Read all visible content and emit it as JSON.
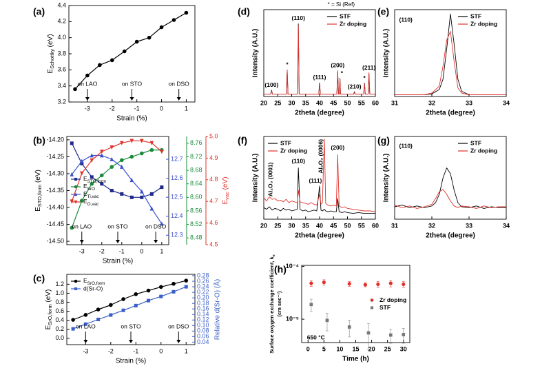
{
  "chart_data": [
    {
      "type": "line",
      "label": "(a)",
      "xlabel": "Strain (%)",
      "ylabel": [
        "E",
        "Schottky",
        " (eV)"
      ],
      "xlim": [
        -3.75,
        1.35
      ],
      "xticks": [
        -3,
        -2,
        -1,
        0,
        1
      ],
      "ylim": [
        3.2,
        4.4
      ],
      "yticks": [
        3.2,
        3.4,
        3.6,
        3.8,
        {
          "value": 4,
          "label": "4.0"
        },
        4.2,
        4.4
      ],
      "x": [
        -3.5,
        -3,
        -2.5,
        -2,
        -1.5,
        -1,
        -0.5,
        0,
        0.5,
        1
      ],
      "series": [
        {
          "color": "#000000",
          "marker": "o",
          "values": [
            3.36,
            3.53,
            3.66,
            3.72,
            3.83,
            3.95,
            4.0,
            4.13,
            4.22,
            4.31
          ]
        }
      ],
      "annotations": [
        {
          "text": "on LAO",
          "x": -3,
          "arrow": true
        },
        {
          "text": "on STO",
          "x": -1.2,
          "arrow": true
        },
        {
          "text": "on DSO",
          "x": 0.7,
          "arrow": true
        }
      ]
    },
    {
      "type": "line",
      "label": "(b)",
      "xlabel": "Strain (%)",
      "ylabel": [
        "E",
        "STO,form",
        " (eV)"
      ],
      "y4label": [
        "E",
        "vac",
        " (eV)"
      ],
      "xlim": [
        -3.75,
        1.35
      ],
      "xticks": [
        -3,
        -2,
        -1,
        0,
        1
      ],
      "ylim": [
        -14.51,
        -14.19
      ],
      "yticks": [
        {
          "value": -14.5,
          "label": "-14.50"
        },
        {
          "value": -14.45,
          "label": "-14.45"
        },
        {
          "value": -14.4,
          "label": "-14.40"
        },
        {
          "value": -14.35,
          "label": "-14.35"
        },
        {
          "value": -14.3,
          "label": "-14.30"
        },
        {
          "value": -14.25,
          "label": "-14.25"
        },
        {
          "value": -14.2,
          "label": "-14.20"
        }
      ],
      "y2lim": [
        12.25,
        12.82
      ],
      "y2ticks": [
        12.3,
        12.4,
        12.5,
        12.6,
        12.7
      ],
      "y3lim": [
        8.46,
        8.78
      ],
      "y3ticks": [
        8.48,
        8.52,
        8.56,
        {
          "value": 8.6,
          "label": "8.60"
        },
        8.64,
        8.68,
        8.72,
        8.76
      ],
      "y4lim": [
        4.5,
        5.0
      ],
      "y4ticks": [
        4.5,
        4.6,
        4.7,
        4.8,
        4.9,
        {
          "value": 5,
          "label": "5.0"
        }
      ],
      "x": [
        -3.5,
        -3,
        -2.5,
        -2,
        -1.5,
        -1,
        -0.5,
        0,
        0.5,
        1
      ],
      "series": [
        {
          "name": [
            "E",
            "STO,form"
          ],
          "color": "#1f2a8a",
          "marker": "s",
          "values": [
            -14.21,
            -14.27,
            -14.31,
            -14.33,
            -14.35,
            -14.36,
            -14.37,
            -14.37,
            -14.36,
            -14.34
          ]
        },
        {
          "name": [
            "E",
            "SrO"
          ],
          "color": "#1a8a3a",
          "marker": "o",
          "axis": "y3",
          "values": [
            8.51,
            8.59,
            8.64,
            8.665,
            8.69,
            8.71,
            8.72,
            8.73,
            8.74,
            8.74
          ]
        },
        {
          "name": [
            "E",
            "Ti,vac"
          ],
          "color": "#3a4fd0",
          "marker": "^",
          "axis": "y2",
          "values": [
            12.62,
            12.69,
            12.72,
            12.72,
            12.7,
            12.66,
            12.59,
            12.53,
            12.44,
            12.36
          ]
        },
        {
          "name": [
            "E",
            "O,vac"
          ],
          "color": "#e0302a",
          "marker": "v",
          "axis": "y4",
          "values": [
            4.7,
            4.83,
            4.89,
            4.93,
            4.95,
            4.97,
            4.98,
            4.98,
            4.97,
            4.93
          ]
        }
      ],
      "legend": "center left",
      "annotations": [
        {
          "text": "on LAO",
          "x": -3,
          "arrow": true
        },
        {
          "text": "on STO",
          "x": -1.2,
          "arrow": true
        },
        {
          "text": "on DSO",
          "x": 0.7,
          "arrow": true
        }
      ]
    },
    {
      "type": "line",
      "label": "(c)",
      "xlabel": "Strain (%)",
      "ylabel": [
        "E",
        "SrO,form",
        " (eV)"
      ],
      "y2label": "Relative d(Sr-O) (Å)",
      "xlim": [
        -3.75,
        1.35
      ],
      "xticks": [
        -3,
        -2,
        -1,
        0,
        1
      ],
      "ylim": [
        -0.14,
        1.42
      ],
      "yticks": [
        {
          "value": 0,
          "label": "0.0"
        },
        0.2,
        0.4,
        0.6,
        0.8,
        {
          "value": 1,
          "label": "1.0"
        },
        1.2
      ],
      "y2lim": [
        0.031,
        0.285
      ],
      "y2ticks": [
        0.04,
        0.06,
        0.08,
        {
          "value": 0.1,
          "label": "0.10"
        },
        0.12,
        0.14,
        0.16,
        0.18,
        {
          "value": 0.2,
          "label": "0.20"
        },
        0.22,
        0.24,
        0.26,
        0.28
      ],
      "x": [
        -3.5,
        -3,
        -2.5,
        -2,
        -1.5,
        -1,
        -0.5,
        0,
        0.5,
        1
      ],
      "series": [
        {
          "name": [
            "E",
            "SrO,form"
          ],
          "color": "#000000",
          "marker": "o",
          "values": [
            0.41,
            0.52,
            0.64,
            0.74,
            0.87,
            0.98,
            1.06,
            1.14,
            1.21,
            1.28
          ]
        },
        {
          "name": "d(Sr-O)",
          "color": "#3a5fc8",
          "marker": "s",
          "axis": "y2",
          "values": [
            0.088,
            0.105,
            0.122,
            0.138,
            0.155,
            0.172,
            0.19,
            0.205,
            0.222,
            0.24
          ]
        }
      ],
      "legend": "upper left",
      "annotations": [
        {
          "text": "on LAO",
          "x": -3,
          "arrow": true
        },
        {
          "text": "on STO",
          "x": -1.2,
          "arrow": true
        },
        {
          "text": "on DSO",
          "x": 0.7,
          "arrow": true
        }
      ]
    },
    {
      "type": "line",
      "label": "(d)",
      "xlabel": "2theta (degree)",
      "ylabel": "Intensity (A.U.)",
      "note": "* = Si (Ref)",
      "xlim": [
        20,
        60
      ],
      "xticks": [
        20,
        25,
        30,
        35,
        40,
        45,
        50,
        55,
        60
      ],
      "ylim": [
        0,
        110
      ],
      "x": [
        20,
        22.5,
        22.8,
        23.1,
        28.1,
        28.4,
        28.7,
        32.1,
        32.4,
        32.7,
        39.7,
        40,
        40.3,
        46.2,
        46.5,
        46.8,
        47.1,
        47.3,
        47.5,
        52.2,
        52.5,
        52.8,
        55.8,
        56.1,
        56.4,
        57.4,
        57.7,
        58,
        60
      ],
      "series": [
        {
          "name": "STF",
          "color": "#000000",
          "values": [
            3,
            3,
            8,
            3,
            3,
            33,
            3,
            3,
            92,
            3,
            3,
            17,
            3,
            3,
            31,
            3,
            3,
            23,
            3,
            3,
            6,
            3,
            3,
            17,
            3,
            3,
            29,
            3,
            3
          ]
        },
        {
          "name": "Zr doping",
          "color": "#e0302a",
          "values": [
            3,
            3,
            7,
            3,
            3,
            34,
            3,
            3,
            90,
            3,
            3,
            15,
            3,
            3,
            33,
            3,
            3,
            22,
            3,
            3,
            5,
            3,
            3,
            16,
            3,
            3,
            30,
            3,
            3
          ]
        }
      ],
      "legend": "upper right",
      "annotations": [
        {
          "text": "(100)",
          "x": 22.8,
          "y": 14
        },
        {
          "text": "*",
          "x": 28.4,
          "y": 40
        },
        {
          "text": "(110)",
          "x": 32.4,
          "y": 99
        },
        {
          "text": "(111)",
          "x": 40,
          "y": 24
        },
        {
          "text": "(200)",
          "x": 46.5,
          "y": 39
        },
        {
          "text": "*",
          "x": 48,
          "y": 29
        },
        {
          "text": "(210)",
          "x": 52.5,
          "y": 12
        },
        {
          "text": "*",
          "x": 56.1,
          "y": 23
        },
        {
          "text": "(211)",
          "x": 57.7,
          "y": 36
        }
      ]
    },
    {
      "type": "line",
      "label": "(e)",
      "xlabel": "2theta (degree)",
      "ylabel": "Intensity (A.U.)",
      "xlim": [
        31,
        34
      ],
      "xticks": [
        31,
        32,
        33,
        34
      ],
      "ylim": [
        0,
        100
      ],
      "x": [
        31,
        31.8,
        32,
        32.2,
        32.3,
        32.4,
        32.5,
        32.6,
        32.7,
        32.8,
        33,
        34
      ],
      "series": [
        {
          "name": "STF",
          "color": "#000000",
          "values": [
            2,
            2,
            3,
            8,
            20,
            55,
            95,
            60,
            20,
            6,
            2,
            2
          ]
        },
        {
          "name": "Zr doping",
          "color": "#e0302a",
          "values": [
            2,
            2,
            4,
            12,
            35,
            65,
            75,
            40,
            10,
            4,
            2,
            2
          ]
        }
      ],
      "legend": "upper right",
      "annotations": [
        {
          "text": "(110)",
          "x": 31.3,
          "y": 88
        }
      ]
    },
    {
      "type": "line",
      "label": "(f)",
      "xlabel": "2theta (degree)",
      "ylabel": "Intensity (A.U.)",
      "xlim": [
        20,
        60
      ],
      "xticks": [
        20,
        25,
        30,
        35,
        40,
        45,
        50,
        55,
        60
      ],
      "ylim": [
        0,
        100
      ],
      "x": [
        20,
        21,
        22,
        23,
        24,
        25,
        26,
        27,
        28,
        29,
        30,
        31,
        32,
        32.4,
        33,
        34,
        35,
        36,
        37,
        38,
        39,
        40,
        40.5,
        41,
        41.7,
        42.2,
        43,
        44,
        45,
        46,
        46.5,
        47,
        48,
        49,
        50,
        52,
        54,
        56,
        58,
        60
      ],
      "series": [
        {
          "name": "STF",
          "color": "#000000",
          "values": [
            14,
            12,
            15,
            11,
            13,
            12,
            10,
            13,
            11,
            12,
            10,
            11,
            12,
            62,
            12,
            10,
            11,
            9,
            10,
            11,
            10,
            40,
            11,
            10,
            12,
            10,
            9,
            10,
            9,
            9,
            25,
            9,
            8,
            9,
            8,
            7,
            8,
            7,
            7,
            7
          ]
        },
        {
          "name": "Zr doping",
          "color": "#e0302a",
          "values": [
            26,
            22,
            27,
            24,
            25,
            22,
            23,
            21,
            24,
            20,
            22,
            21,
            20,
            35,
            21,
            20,
            19,
            18,
            20,
            18,
            17,
            30,
            18,
            20,
            97,
            19,
            17,
            16,
            17,
            16,
            78,
            16,
            14,
            15,
            13,
            12,
            11,
            10,
            10,
            9
          ]
        }
      ],
      "legend": "upper left",
      "annotations": [
        {
          "text": "Al₂O₃ (0001)",
          "x": 22.5,
          "y": 48,
          "rotate": true
        },
        {
          "text": "(110)",
          "x": 32.4,
          "y": 70
        },
        {
          "text": "(111)",
          "x": 38.5,
          "y": 46
        },
        {
          "text": "Al₂O₃ (0006)",
          "x": 40.6,
          "y": 76,
          "rotate": true
        },
        {
          "text": "(200)",
          "x": 46.5,
          "y": 86
        }
      ]
    },
    {
      "type": "line",
      "label": "(g)",
      "xlabel": "2theta (degree)",
      "ylabel": "Intensity (A.U.)",
      "xlim": [
        31,
        34
      ],
      "xticks": [
        31,
        32,
        33,
        34
      ],
      "ylim": [
        0,
        100
      ],
      "x": [
        31,
        31.2,
        31.4,
        31.6,
        31.8,
        32,
        32.1,
        32.2,
        32.3,
        32.4,
        32.5,
        32.6,
        32.7,
        32.8,
        33,
        33.2,
        33.4,
        33.6,
        33.8,
        34
      ],
      "series": [
        {
          "name": "STF",
          "color": "#000000",
          "values": [
            15,
            17,
            14,
            16,
            14,
            16,
            20,
            30,
            50,
            62,
            55,
            35,
            20,
            15,
            14,
            16,
            13,
            15,
            14,
            14
          ]
        },
        {
          "name": "Zr doping",
          "color": "#e0302a",
          "values": [
            17,
            14,
            16,
            13,
            15,
            18,
            25,
            33,
            36,
            30,
            22,
            16,
            14,
            16,
            15,
            13,
            16,
            14,
            15,
            15
          ]
        }
      ],
      "legend": "upper right",
      "annotations": [
        {
          "text": "(110)",
          "x": 31.3,
          "y": 88
        }
      ]
    },
    {
      "type": "scatter",
      "label": "(h)",
      "xlabel": "Time (h)",
      "ylabel": [
        "Surface oxygen exchange coefficient, k",
        "e"
      ],
      "ylabel2": "(cm sec⁻¹)",
      "xlim": [
        -2,
        32
      ],
      "xticks": [
        0,
        5,
        10,
        15,
        20,
        25,
        30
      ],
      "ylim": [
        3.6e-06,
        0.000105
      ],
      "log": true,
      "yticks": [
        {
          "value": 0.0001,
          "label": "10⁻⁴"
        },
        {
          "value": 1e-05,
          "label": "10⁻⁵"
        }
      ],
      "series": [
        {
          "name": "Zr doping",
          "color": "#e0302a",
          "marker": "o",
          "x": [
            1,
            5,
            13,
            18,
            22,
            26,
            30
          ],
          "values": [
            4.8e-05,
            5e-05,
            4.7e-05,
            4.5e-05,
            4.6e-05,
            4.8e-05,
            4.6e-05
          ],
          "errors": [
            6e-06,
            6e-06,
            5e-06,
            4e-06,
            6e-06,
            7e-06,
            6e-06
          ]
        },
        {
          "name": "STF",
          "color": "#777777",
          "marker": "s",
          "x": [
            1,
            6,
            13,
            19,
            26,
            30
          ],
          "values": [
            1.9e-05,
            9.5e-06,
            7.1e-06,
            5.5e-06,
            5e-06,
            5.1e-06
          ],
          "errors": [
            5e-06,
            3.5e-06,
            2.5e-06,
            2.8e-06,
            1.5e-06,
            1.6e-06
          ]
        }
      ],
      "legend": "center right",
      "annotations": [
        {
          "text": "650 °C",
          "x": 2.5,
          "y": 4.4e-06
        }
      ]
    }
  ]
}
